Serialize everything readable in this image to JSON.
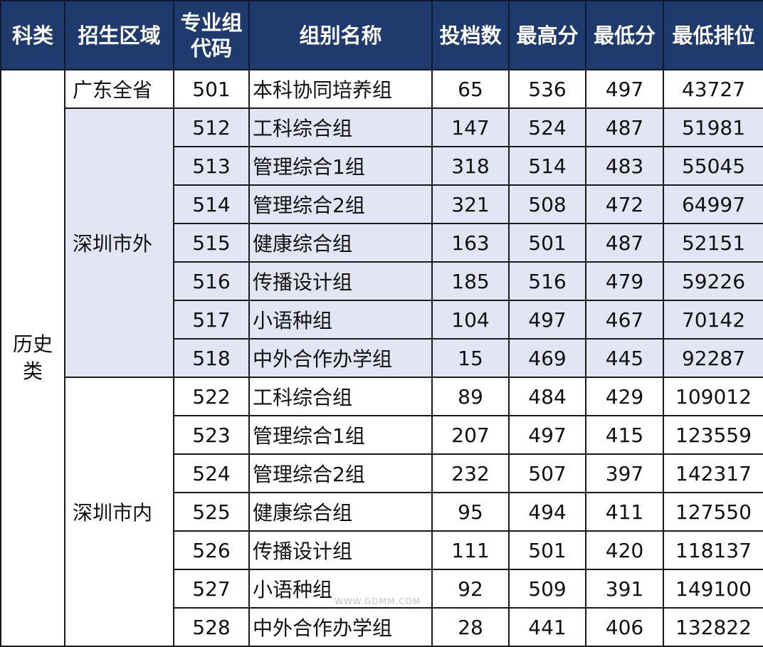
{
  "header": [
    "科类",
    "招生区域",
    "专业组代码",
    "组别名称",
    "投档数",
    "最高分",
    "最低分",
    "最低排位"
  ],
  "subject": "历史类",
  "groups": [
    {
      "region": "广东全省",
      "rows": [
        {
          "code": "501",
          "name": "本科协同培养组",
          "count": "65",
          "max": "536",
          "min": "497",
          "rank": "43727"
        }
      ]
    },
    {
      "region": "深圳市外",
      "rows": [
        {
          "code": "512",
          "name": "工科综合组",
          "count": "147",
          "max": "524",
          "min": "487",
          "rank": "51981"
        },
        {
          "code": "513",
          "name": "管理综合1组",
          "count": "318",
          "max": "514",
          "min": "483",
          "rank": "55045"
        },
        {
          "code": "514",
          "name": "管理综合2组",
          "count": "321",
          "max": "508",
          "min": "472",
          "rank": "64997"
        },
        {
          "code": "515",
          "name": "健康综合组",
          "count": "163",
          "max": "501",
          "min": "487",
          "rank": "52151"
        },
        {
          "code": "516",
          "name": "传播设计组",
          "count": "185",
          "max": "516",
          "min": "479",
          "rank": "59226"
        },
        {
          "code": "517",
          "name": "小语种组",
          "count": "104",
          "max": "497",
          "min": "467",
          "rank": "70142"
        },
        {
          "code": "518",
          "name": "中外合作办学组",
          "count": "15",
          "max": "469",
          "min": "445",
          "rank": "92287"
        }
      ]
    },
    {
      "region": "深圳市内",
      "rows": [
        {
          "code": "522",
          "name": "工科综合组",
          "count": "89",
          "max": "484",
          "min": "429",
          "rank": "109012"
        },
        {
          "code": "523",
          "name": "管理综合1组",
          "count": "207",
          "max": "497",
          "min": "415",
          "rank": "123559"
        },
        {
          "code": "524",
          "name": "管理综合2组",
          "count": "232",
          "max": "507",
          "min": "397",
          "rank": "142317"
        },
        {
          "code": "525",
          "name": "健康综合组",
          "count": "95",
          "max": "494",
          "min": "411",
          "rank": "127550"
        },
        {
          "code": "526",
          "name": "传播设计组",
          "count": "111",
          "max": "501",
          "min": "420",
          "rank": "118137"
        },
        {
          "code": "527",
          "name": "小语种组",
          "count": "92",
          "max": "509",
          "min": "391",
          "rank": "149100"
        },
        {
          "code": "528",
          "name": "中外合作办学组",
          "count": "28",
          "max": "441",
          "min": "406",
          "rank": "132822"
        }
      ]
    }
  ],
  "watermark": "WWW.GDMM.COM"
}
